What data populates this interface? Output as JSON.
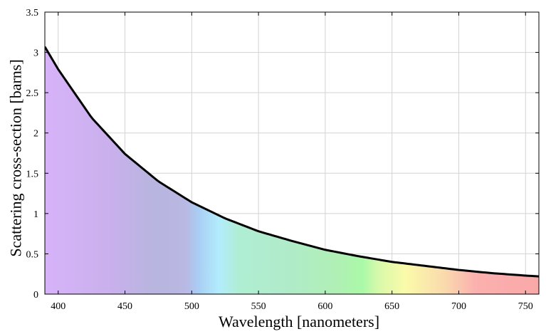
{
  "chart_data": {
    "type": "area",
    "xlabel": "Wavelength [nanometers]",
    "ylabel": "Scattering cross-section [barns]",
    "xlim": [
      390,
      760
    ],
    "ylim": [
      0,
      3.5
    ],
    "xticks": [
      400,
      450,
      500,
      550,
      600,
      650,
      700,
      750
    ],
    "yticks": [
      0,
      0.5,
      1,
      1.5,
      2,
      2.5,
      3,
      3.5
    ],
    "ytick_labels": [
      "0",
      "0.5",
      "1",
      "1.5",
      "2",
      "2.5",
      "3",
      "3.5"
    ],
    "grid": true,
    "series": [
      {
        "x": [
          390,
          400,
          425,
          450,
          475,
          500,
          525,
          550,
          575,
          600,
          625,
          650,
          675,
          700,
          725,
          750,
          760
        ],
        "y": [
          3.07,
          2.79,
          2.19,
          1.74,
          1.4,
          1.14,
          0.94,
          0.78,
          0.66,
          0.55,
          0.47,
          0.4,
          0.35,
          0.3,
          0.26,
          0.23,
          0.22
        ]
      }
    ],
    "fill_colors": [
      {
        "x": 390,
        "color": "#d7b3f9"
      },
      {
        "x": 440,
        "color": "#c9b0ec"
      },
      {
        "x": 470,
        "color": "#b8b5df"
      },
      {
        "x": 495,
        "color": "#b9b8e3"
      },
      {
        "x": 505,
        "color": "#a9cdf3"
      },
      {
        "x": 520,
        "color": "#b2ecfd"
      },
      {
        "x": 535,
        "color": "#b0eed4"
      },
      {
        "x": 575,
        "color": "#b0ebc8"
      },
      {
        "x": 610,
        "color": "#b0f0b4"
      },
      {
        "x": 628,
        "color": "#aaf9a8"
      },
      {
        "x": 640,
        "color": "#d8f9aa"
      },
      {
        "x": 660,
        "color": "#fbfbaa"
      },
      {
        "x": 690,
        "color": "#fad9ad"
      },
      {
        "x": 712,
        "color": "#fbb1af"
      },
      {
        "x": 760,
        "color": "#f9a8a8"
      }
    ],
    "line_color": "#000000",
    "grid_color": "#d3d3d3"
  }
}
